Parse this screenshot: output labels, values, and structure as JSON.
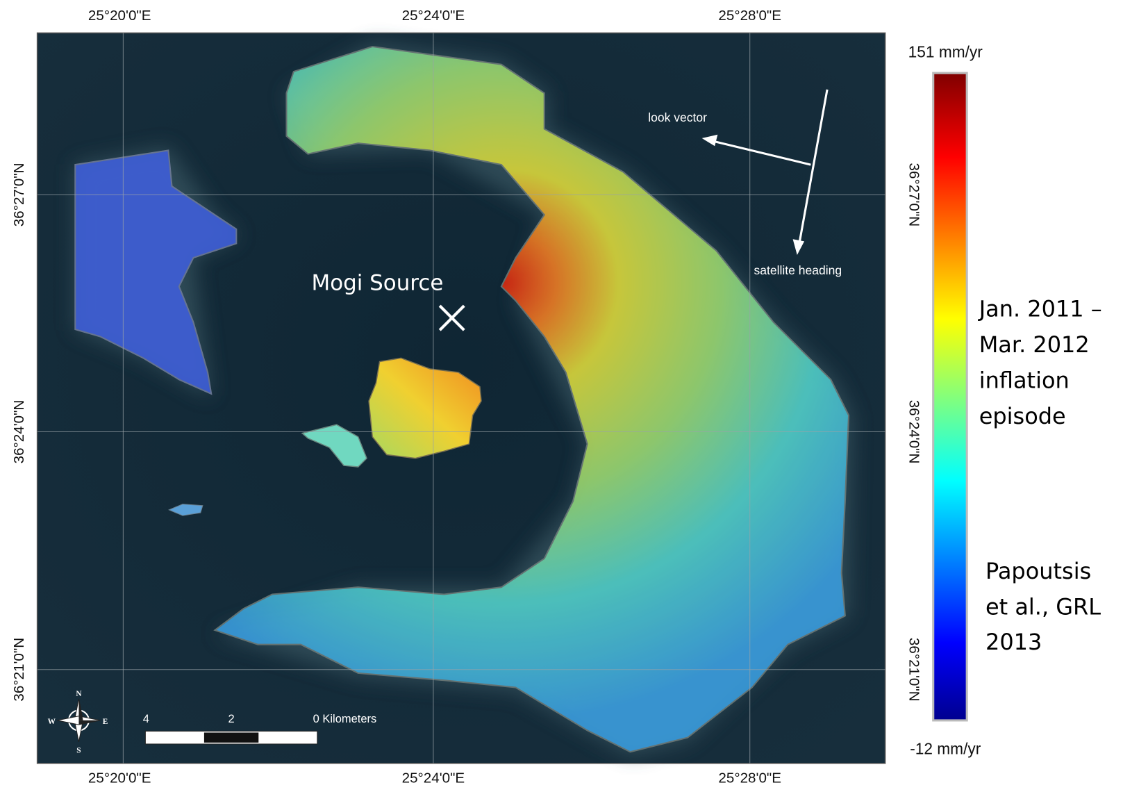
{
  "map": {
    "x_labels_top": [
      "25°20'0\"E",
      "25°24'0\"E",
      "25°28'0\"E"
    ],
    "x_labels_bottom": [
      "25°20'0\"E",
      "25°24'0\"E",
      "25°28'0\"E"
    ],
    "y_labels_left": [
      "36°27'0\"N",
      "36°24'0\"N",
      "36°21'0\"N"
    ],
    "y_labels_right": [
      "36°27'0\"N",
      "36°24'0\"N",
      "36°21'0\"N"
    ]
  },
  "annotations": {
    "mogi_source": "Mogi Source",
    "look_vector": "look vector",
    "satellite_heading": "satellite heading"
  },
  "scale_bar": {
    "labels": [
      "4",
      "2",
      "0 Kilometers"
    ]
  },
  "compass": {
    "n": "N",
    "s": "S",
    "e": "E",
    "w": "W"
  },
  "colorbar": {
    "max_label": "151 mm/yr",
    "min_label": "-12 mm/yr"
  },
  "caption": {
    "episode": [
      "Jan. 2011 –",
      "Mar. 2012",
      "inflation",
      "episode"
    ],
    "citation": [
      "Papoutsis",
      "et al., GRL",
      "2013"
    ]
  }
}
